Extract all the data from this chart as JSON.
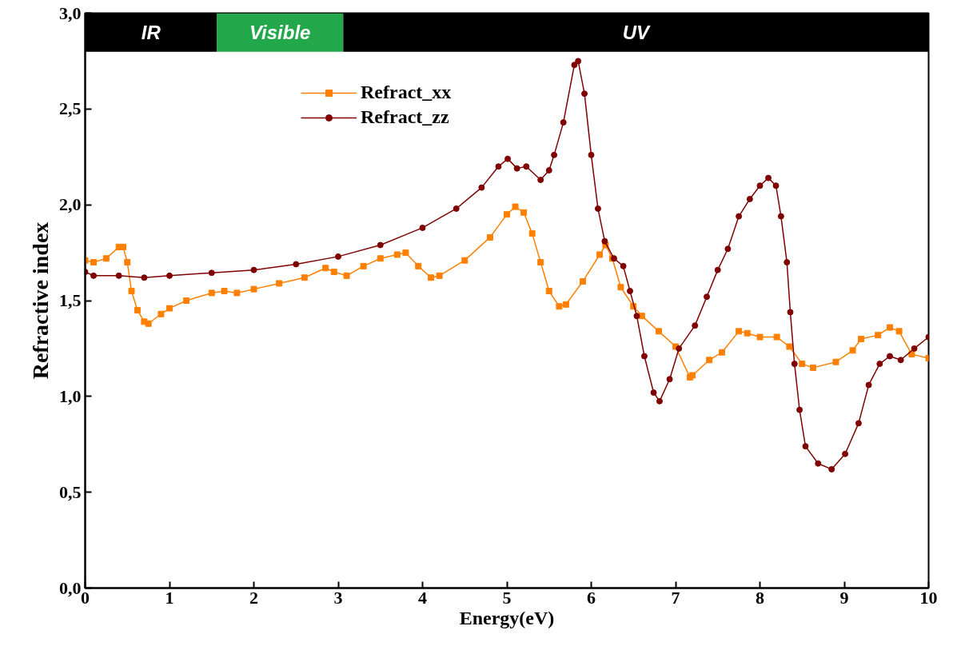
{
  "chart_data": {
    "type": "line",
    "xlabel": "Energy(eV)",
    "ylabel": "Refractive index",
    "xlim": [
      0,
      10
    ],
    "ylim": [
      0,
      3
    ],
    "xticks": [
      0,
      1,
      2,
      3,
      4,
      5,
      6,
      7,
      8,
      9,
      10
    ],
    "yticks": [
      {
        "value": 0,
        "label": "0,0"
      },
      {
        "value": 0.5,
        "label": "0,5"
      },
      {
        "value": 1,
        "label": "1,0"
      },
      {
        "value": 1.5,
        "label": "1,5"
      },
      {
        "value": 2,
        "label": "2,0"
      },
      {
        "value": 2.5,
        "label": "2,5"
      },
      {
        "value": 3,
        "label": "3,0"
      }
    ],
    "grid": false,
    "legend": "top left",
    "line_style": "solid",
    "bands": [
      {
        "axis": "x",
        "from": 0,
        "to": 1.56,
        "label": "IR",
        "color": "#000000"
      },
      {
        "axis": "x",
        "from": 1.56,
        "to": 3.06,
        "label": "Visible",
        "color": "#22a84a"
      },
      {
        "axis": "x",
        "from": 3.06,
        "to": 10,
        "label": "UV",
        "color": "#000000"
      }
    ],
    "series": [
      {
        "name": "Refract_xx",
        "color": "#ff8000",
        "marker": "square",
        "x": [
          0,
          0.1,
          0.25,
          0.4,
          0.45,
          0.5,
          0.55,
          0.62,
          0.7,
          0.75,
          0.9,
          1.0,
          1.2,
          1.5,
          1.65,
          1.8,
          2.0,
          2.3,
          2.6,
          2.85,
          2.95,
          3.1,
          3.3,
          3.5,
          3.7,
          3.8,
          3.95,
          4.1,
          4.2,
          4.5,
          4.8,
          5.0,
          5.1,
          5.2,
          5.3,
          5.4,
          5.5,
          5.62,
          5.7,
          5.9,
          6.1,
          6.17,
          6.25,
          6.35,
          6.5,
          6.6,
          6.8,
          7.0,
          7.17,
          7.2,
          7.4,
          7.55,
          7.75,
          7.85,
          8.0,
          8.2,
          8.35,
          8.5,
          8.63,
          8.9,
          9.1,
          9.2,
          9.4,
          9.54,
          9.65,
          9.8,
          10.0
        ],
        "values": [
          1.71,
          1.7,
          1.72,
          1.78,
          1.78,
          1.7,
          1.55,
          1.45,
          1.39,
          1.38,
          1.43,
          1.46,
          1.5,
          1.54,
          1.55,
          1.54,
          1.56,
          1.59,
          1.62,
          1.67,
          1.65,
          1.63,
          1.68,
          1.72,
          1.74,
          1.75,
          1.68,
          1.62,
          1.63,
          1.71,
          1.83,
          1.95,
          1.99,
          1.96,
          1.85,
          1.7,
          1.55,
          1.47,
          1.48,
          1.6,
          1.74,
          1.79,
          1.72,
          1.57,
          1.47,
          1.42,
          1.34,
          1.26,
          1.1,
          1.11,
          1.19,
          1.23,
          1.34,
          1.33,
          1.31,
          1.31,
          1.26,
          1.17,
          1.15,
          1.18,
          1.24,
          1.3,
          1.32,
          1.36,
          1.34,
          1.22,
          1.2
        ]
      },
      {
        "name": "Refract_zz",
        "color": "#800000",
        "marker": "circle",
        "x": [
          0,
          0.1,
          0.4,
          0.7,
          1.0,
          1.5,
          2.0,
          2.5,
          3.0,
          3.5,
          4.0,
          4.4,
          4.7,
          4.9,
          5.01,
          5.12,
          5.23,
          5.4,
          5.5,
          5.56,
          5.67,
          5.8,
          5.845,
          5.92,
          6.0,
          6.08,
          6.16,
          6.27,
          6.38,
          6.46,
          6.54,
          6.63,
          6.74,
          6.81,
          6.93,
          7.04,
          7.23,
          7.37,
          7.5,
          7.62,
          7.75,
          7.88,
          8.0,
          8.1,
          8.19,
          8.25,
          8.32,
          8.36,
          8.41,
          8.47,
          8.54,
          8.69,
          8.85,
          9.01,
          9.17,
          9.29,
          9.42,
          9.54,
          9.67,
          9.83,
          10.0
        ],
        "values": [
          1.65,
          1.63,
          1.63,
          1.62,
          1.63,
          1.645,
          1.66,
          1.69,
          1.73,
          1.79,
          1.88,
          1.98,
          2.09,
          2.2,
          2.24,
          2.19,
          2.2,
          2.13,
          2.18,
          2.26,
          2.43,
          2.73,
          2.75,
          2.58,
          2.26,
          1.98,
          1.81,
          1.72,
          1.68,
          1.55,
          1.42,
          1.21,
          1.02,
          0.975,
          1.09,
          1.25,
          1.37,
          1.52,
          1.66,
          1.77,
          1.94,
          2.03,
          2.1,
          2.14,
          2.1,
          1.94,
          1.7,
          1.44,
          1.17,
          0.93,
          0.74,
          0.65,
          0.62,
          0.7,
          0.86,
          1.06,
          1.17,
          1.21,
          1.19,
          1.25,
          1.31
        ]
      }
    ]
  }
}
